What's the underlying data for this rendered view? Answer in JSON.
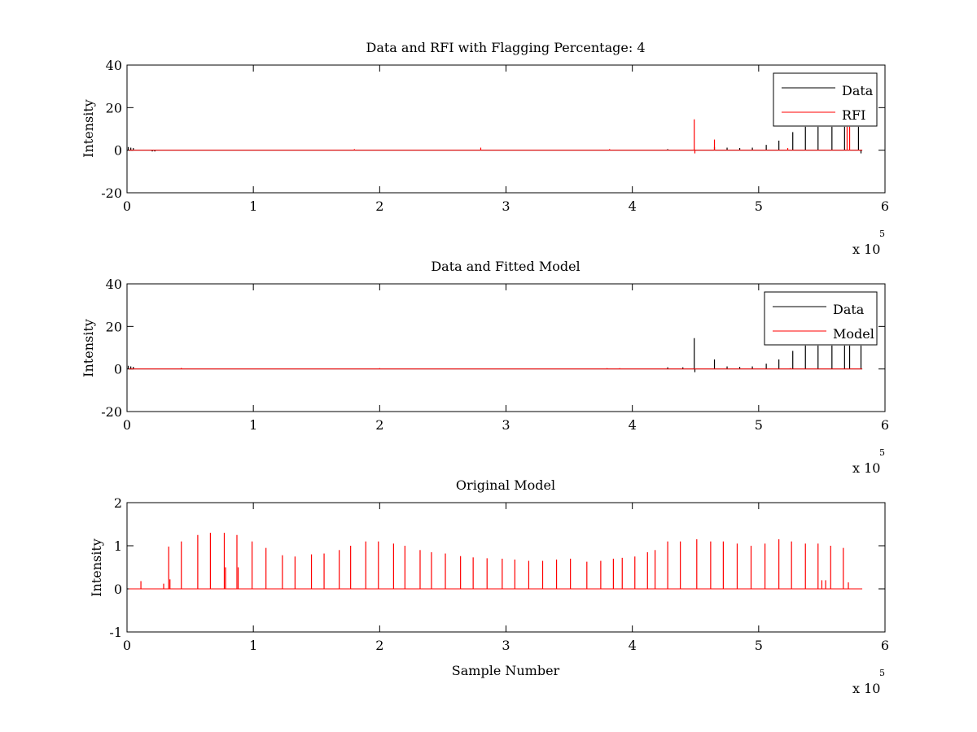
{
  "chart_data": [
    {
      "type": "line",
      "title": "Data and RFI with Flagging Percentage: 4",
      "xlabel": "",
      "ylabel": "Intensity",
      "xlim": [
        0,
        600000
      ],
      "ylim": [
        -20,
        40
      ],
      "xticks": [
        0,
        100000,
        200000,
        300000,
        400000,
        500000,
        600000
      ],
      "xtick_labels": [
        "0",
        "1",
        "2",
        "3",
        "4",
        "5",
        "6"
      ],
      "yticks": [
        -20,
        0,
        20,
        40
      ],
      "ytick_labels": [
        "-20",
        "0",
        "20",
        "40"
      ],
      "x_multiplier_base": "x 10",
      "x_multiplier_exponent": "5",
      "legend": {
        "placement": "top-right",
        "entries": [
          {
            "label": "Data",
            "color": "#000000"
          },
          {
            "label": "RFI",
            "color": "#ff0000"
          }
        ]
      },
      "series": [
        {
          "name": "Data",
          "color": "#000000",
          "baseline": 0,
          "spikes": [
            {
              "x": 1000,
              "y": 1.5
            },
            {
              "x": 3000,
              "y": 1.2
            },
            {
              "x": 5000,
              "y": 1.0
            },
            {
              "x": 20000,
              "y": -0.6
            },
            {
              "x": 22000,
              "y": -0.6
            },
            {
              "x": 428000,
              "y": 0.5
            },
            {
              "x": 465000,
              "y": 1.5
            },
            {
              "x": 475000,
              "y": 1.2
            },
            {
              "x": 485000,
              "y": 1.0
            },
            {
              "x": 495000,
              "y": 1.2
            },
            {
              "x": 506000,
              "y": 2.5
            },
            {
              "x": 516000,
              "y": 4.5
            },
            {
              "x": 527000,
              "y": 8.5
            },
            {
              "x": 537000,
              "y": 11
            },
            {
              "x": 547000,
              "y": 11
            },
            {
              "x": 558000,
              "y": 11
            },
            {
              "x": 568000,
              "y": 11
            },
            {
              "x": 579000,
              "y": 11
            },
            {
              "x": 581000,
              "y": -1.5
            }
          ]
        },
        {
          "name": "RFI",
          "color": "#ff0000",
          "baseline": 0,
          "spikes": [
            {
              "x": 180000,
              "y": 0.5
            },
            {
              "x": 280000,
              "y": 1.2
            },
            {
              "x": 382000,
              "y": 0.5
            },
            {
              "x": 449000,
              "y": 14.5
            },
            {
              "x": 449500,
              "y": -1.5
            },
            {
              "x": 465000,
              "y": 5
            },
            {
              "x": 523000,
              "y": 1
            },
            {
              "x": 570000,
              "y": 11
            },
            {
              "x": 572000,
              "y": 11
            }
          ]
        }
      ]
    },
    {
      "type": "line",
      "title": "Data and Fitted Model",
      "xlabel": "",
      "ylabel": "Intensity",
      "xlim": [
        0,
        600000
      ],
      "ylim": [
        -20,
        40
      ],
      "xticks": [
        0,
        100000,
        200000,
        300000,
        400000,
        500000,
        600000
      ],
      "xtick_labels": [
        "0",
        "1",
        "2",
        "3",
        "4",
        "5",
        "6"
      ],
      "yticks": [
        -20,
        0,
        20,
        40
      ],
      "ytick_labels": [
        "-20",
        "0",
        "20",
        "40"
      ],
      "x_multiplier_base": "x 10",
      "x_multiplier_exponent": "5",
      "legend": {
        "placement": "top-right",
        "entries": [
          {
            "label": "Data",
            "color": "#000000"
          },
          {
            "label": "Model",
            "color": "#ff0000"
          }
        ]
      },
      "series": [
        {
          "name": "Data",
          "color": "#000000",
          "baseline": 0,
          "spikes": [
            {
              "x": 1000,
              "y": 1.5
            },
            {
              "x": 3000,
              "y": 1.2
            },
            {
              "x": 5000,
              "y": 1.0
            },
            {
              "x": 428000,
              "y": 0.8
            },
            {
              "x": 440000,
              "y": 0.8
            },
            {
              "x": 449000,
              "y": 14.5
            },
            {
              "x": 449500,
              "y": -1.5
            },
            {
              "x": 465000,
              "y": 4.5
            },
            {
              "x": 475000,
              "y": 1.2
            },
            {
              "x": 485000,
              "y": 1.0
            },
            {
              "x": 495000,
              "y": 1.2
            },
            {
              "x": 506000,
              "y": 2.5
            },
            {
              "x": 516000,
              "y": 4.5
            },
            {
              "x": 527000,
              "y": 8.5
            },
            {
              "x": 537000,
              "y": 11
            },
            {
              "x": 547000,
              "y": 11
            },
            {
              "x": 558000,
              "y": 11
            },
            {
              "x": 568000,
              "y": 11
            },
            {
              "x": 572000,
              "y": 11
            },
            {
              "x": 581000,
              "y": 11
            }
          ]
        },
        {
          "name": "Model",
          "color": "#ff0000",
          "baseline": 0,
          "spikes": [
            {
              "x": 43000,
              "y": 0.5
            },
            {
              "x": 200000,
              "y": 0.4
            },
            {
              "x": 380000,
              "y": 0.4
            },
            {
              "x": 390000,
              "y": 0.4
            },
            {
              "x": 525000,
              "y": 0.4
            }
          ]
        }
      ]
    },
    {
      "type": "line",
      "title": "Original Model",
      "xlabel": "Sample Number",
      "ylabel": "Intensity",
      "xlim": [
        0,
        600000
      ],
      "ylim": [
        -1,
        2
      ],
      "xticks": [
        0,
        100000,
        200000,
        300000,
        400000,
        500000,
        600000
      ],
      "xtick_labels": [
        "0",
        "1",
        "2",
        "3",
        "4",
        "5",
        "6"
      ],
      "yticks": [
        -1,
        0,
        1,
        2
      ],
      "ytick_labels": [
        "-1",
        "0",
        "1",
        "2"
      ],
      "x_multiplier_base": "x 10",
      "x_multiplier_exponent": "5",
      "series": [
        {
          "color": "#ff0000",
          "baseline": 0,
          "spikes": [
            {
              "x": 11000,
              "y": 0.18
            },
            {
              "x": 29000,
              "y": 0.12
            },
            {
              "x": 33000,
              "y": 0.98
            },
            {
              "x": 34000,
              "y": 0.22
            },
            {
              "x": 43000,
              "y": 1.1
            },
            {
              "x": 56000,
              "y": 1.25
            },
            {
              "x": 66000,
              "y": 1.3
            },
            {
              "x": 77000,
              "y": 1.3
            },
            {
              "x": 78000,
              "y": 0.5
            },
            {
              "x": 87000,
              "y": 1.25
            },
            {
              "x": 88000,
              "y": 0.5
            },
            {
              "x": 99000,
              "y": 1.1
            },
            {
              "x": 110000,
              "y": 0.95
            },
            {
              "x": 123000,
              "y": 0.78
            },
            {
              "x": 133000,
              "y": 0.75
            },
            {
              "x": 146000,
              "y": 0.8
            },
            {
              "x": 156000,
              "y": 0.82
            },
            {
              "x": 168000,
              "y": 0.9
            },
            {
              "x": 177000,
              "y": 1.0
            },
            {
              "x": 189000,
              "y": 1.1
            },
            {
              "x": 199000,
              "y": 1.1
            },
            {
              "x": 211000,
              "y": 1.05
            },
            {
              "x": 220000,
              "y": 1.0
            },
            {
              "x": 232000,
              "y": 0.9
            },
            {
              "x": 241000,
              "y": 0.85
            },
            {
              "x": 252000,
              "y": 0.82
            },
            {
              "x": 264000,
              "y": 0.76
            },
            {
              "x": 274000,
              "y": 0.73
            },
            {
              "x": 285000,
              "y": 0.71
            },
            {
              "x": 297000,
              "y": 0.7
            },
            {
              "x": 307000,
              "y": 0.68
            },
            {
              "x": 318000,
              "y": 0.65
            },
            {
              "x": 329000,
              "y": 0.65
            },
            {
              "x": 340000,
              "y": 0.68
            },
            {
              "x": 351000,
              "y": 0.7
            },
            {
              "x": 364000,
              "y": 0.63
            },
            {
              "x": 375000,
              "y": 0.65
            },
            {
              "x": 385000,
              "y": 0.7
            },
            {
              "x": 392000,
              "y": 0.72
            },
            {
              "x": 402000,
              "y": 0.75
            },
            {
              "x": 412000,
              "y": 0.85
            },
            {
              "x": 418000,
              "y": 0.9
            },
            {
              "x": 428000,
              "y": 1.1
            },
            {
              "x": 438000,
              "y": 1.1
            },
            {
              "x": 451000,
              "y": 1.15
            },
            {
              "x": 462000,
              "y": 1.1
            },
            {
              "x": 472000,
              "y": 1.1
            },
            {
              "x": 483000,
              "y": 1.05
            },
            {
              "x": 494000,
              "y": 1.0
            },
            {
              "x": 505000,
              "y": 1.05
            },
            {
              "x": 516000,
              "y": 1.15
            },
            {
              "x": 526000,
              "y": 1.1
            },
            {
              "x": 537000,
              "y": 1.05
            },
            {
              "x": 547000,
              "y": 1.05
            },
            {
              "x": 557000,
              "y": 1.0
            },
            {
              "x": 567000,
              "y": 0.95
            },
            {
              "x": 571000,
              "y": 0.15
            },
            {
              "x": 550000,
              "y": 0.2
            },
            {
              "x": 553000,
              "y": 0.2
            }
          ]
        }
      ]
    }
  ]
}
